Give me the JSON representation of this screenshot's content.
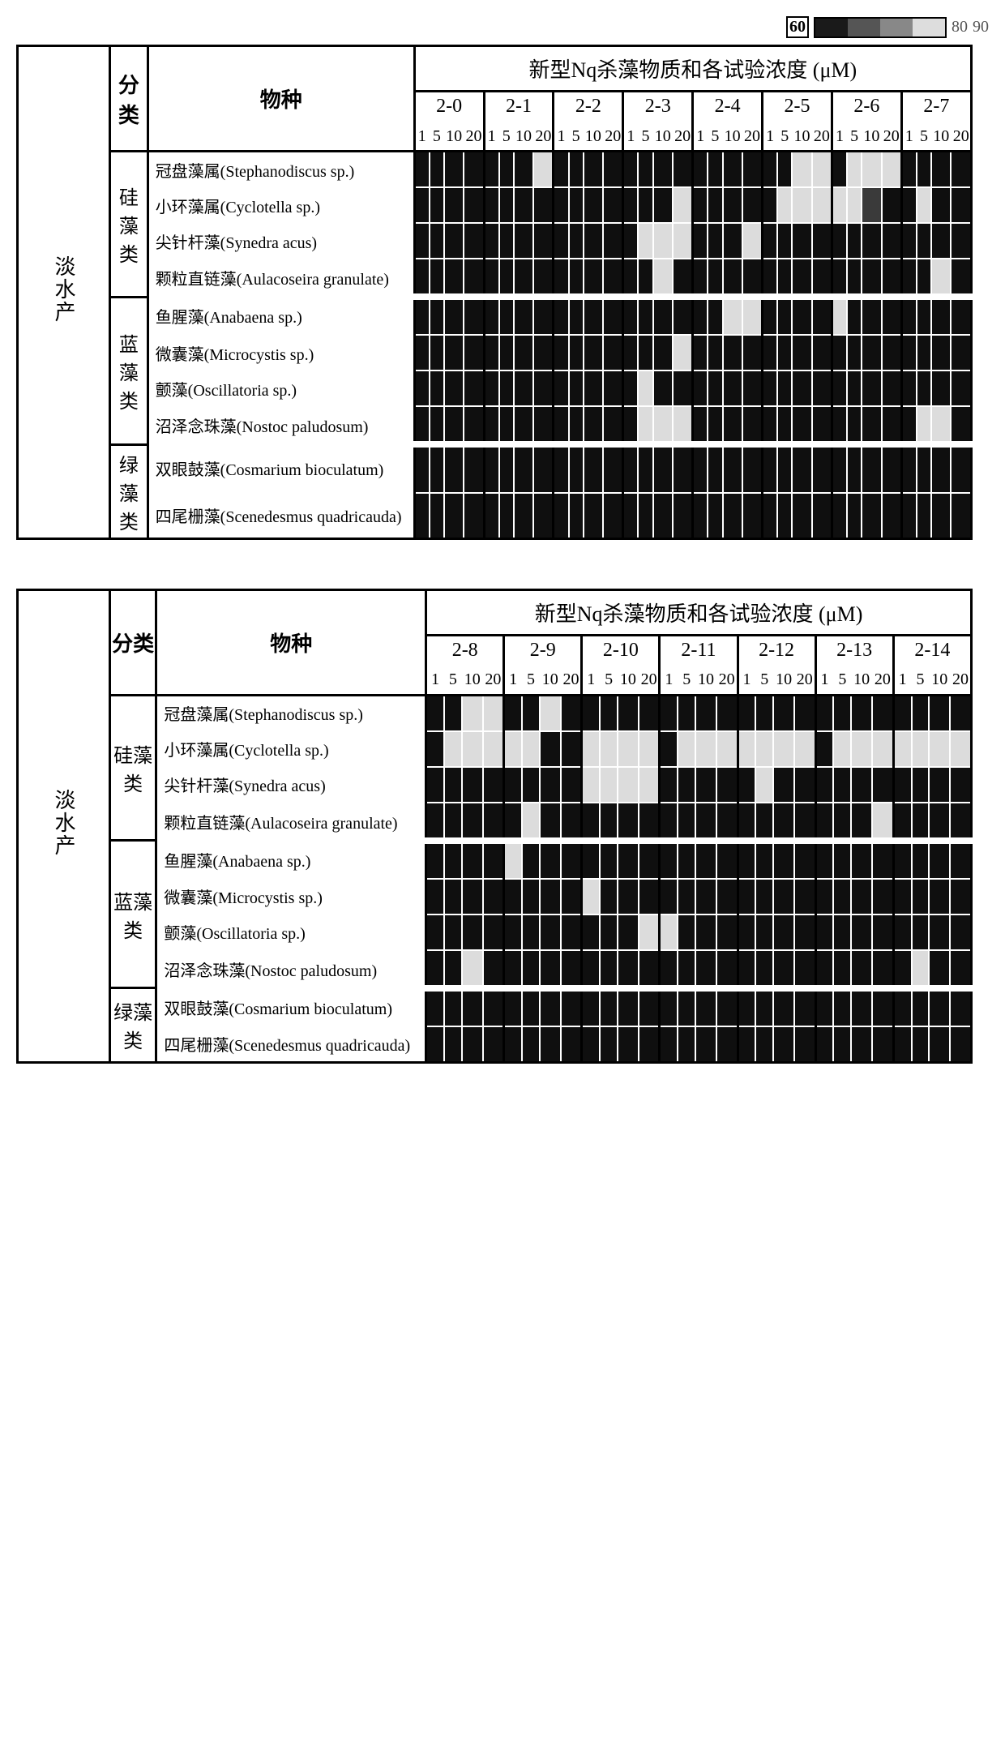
{
  "legend": {
    "labels": [
      "60",
      "80",
      "90"
    ],
    "colors": [
      "#1a1a1a",
      "#555555",
      "#888888",
      "#dddddd"
    ]
  },
  "shade_map": {
    "0": "#0f0f0f",
    "1": "#3a3a3a",
    "2": "#777777",
    "3": "#dcdcdc"
  },
  "panel_title": "新型Nq杀藻物质和各试验浓度 (μM)",
  "env_label": "淡水产",
  "cat_header": "分类",
  "sp_header": "物种",
  "concentrations": [
    "1",
    "5",
    "10",
    "20"
  ],
  "categories": [
    {
      "name": "硅藻类",
      "rows": 4
    },
    {
      "name": "蓝藻类",
      "rows": 4
    },
    {
      "name": "绿藻类",
      "rows": 2
    }
  ],
  "species": [
    "冠盘藻属(Stephanodiscus sp.)",
    "小环藻属(Cyclotella sp.)",
    "尖针杆藻(Synedra acus)",
    "颗粒直链藻(Aulacoseira granulate)",
    "鱼腥藻(Anabaena sp.)",
    "微囊藻(Microcystis sp.)",
    "颤藻(Oscillatoria sp.)",
    "沼泽念珠藻(Nostoc paludosum)",
    "双眼鼓藻(Cosmarium bioculatum)",
    "四尾栅藻(Scenedesmus quadricauda)"
  ],
  "panels": [
    {
      "compounds": [
        "2-0",
        "2-1",
        "2-2",
        "2-3",
        "2-4",
        "2-5",
        "2-6",
        "2-7"
      ],
      "data": [
        [
          [
            0,
            0,
            0,
            0
          ],
          [
            0,
            0,
            0,
            3
          ],
          [
            0,
            0,
            0,
            0
          ],
          [
            0,
            0,
            0,
            0
          ],
          [
            0,
            0,
            0,
            0
          ],
          [
            0,
            0,
            3,
            3
          ],
          [
            0,
            3,
            3,
            3
          ],
          [
            0,
            0,
            0,
            0
          ]
        ],
        [
          [
            0,
            0,
            0,
            0
          ],
          [
            0,
            0,
            0,
            0
          ],
          [
            0,
            0,
            0,
            0
          ],
          [
            0,
            0,
            0,
            3
          ],
          [
            0,
            0,
            0,
            0
          ],
          [
            0,
            3,
            3,
            3
          ],
          [
            3,
            3,
            1,
            0
          ],
          [
            0,
            3,
            0,
            0
          ]
        ],
        [
          [
            0,
            0,
            0,
            0
          ],
          [
            0,
            0,
            0,
            0
          ],
          [
            0,
            0,
            0,
            0
          ],
          [
            0,
            3,
            3,
            3
          ],
          [
            0,
            0,
            0,
            3
          ],
          [
            0,
            0,
            0,
            0
          ],
          [
            0,
            0,
            0,
            0
          ],
          [
            0,
            0,
            0,
            0
          ]
        ],
        [
          [
            0,
            0,
            0,
            0
          ],
          [
            0,
            0,
            0,
            0
          ],
          [
            0,
            0,
            0,
            0
          ],
          [
            0,
            0,
            3,
            0
          ],
          [
            0,
            0,
            0,
            0
          ],
          [
            0,
            0,
            0,
            0
          ],
          [
            0,
            0,
            0,
            0
          ],
          [
            0,
            0,
            3,
            0
          ]
        ],
        [
          [
            0,
            0,
            0,
            0
          ],
          [
            0,
            0,
            0,
            0
          ],
          [
            0,
            0,
            0,
            0
          ],
          [
            0,
            0,
            0,
            0
          ],
          [
            0,
            0,
            3,
            3
          ],
          [
            0,
            0,
            0,
            0
          ],
          [
            3,
            0,
            0,
            0
          ],
          [
            0,
            0,
            0,
            0
          ]
        ],
        [
          [
            0,
            0,
            0,
            0
          ],
          [
            0,
            0,
            0,
            0
          ],
          [
            0,
            0,
            0,
            0
          ],
          [
            0,
            0,
            0,
            3
          ],
          [
            0,
            0,
            0,
            0
          ],
          [
            0,
            0,
            0,
            0
          ],
          [
            0,
            0,
            0,
            0
          ],
          [
            0,
            0,
            0,
            0
          ]
        ],
        [
          [
            0,
            0,
            0,
            0
          ],
          [
            0,
            0,
            0,
            0
          ],
          [
            0,
            0,
            0,
            0
          ],
          [
            0,
            3,
            0,
            0
          ],
          [
            0,
            0,
            0,
            0
          ],
          [
            0,
            0,
            0,
            0
          ],
          [
            0,
            0,
            0,
            0
          ],
          [
            0,
            0,
            0,
            0
          ]
        ],
        [
          [
            0,
            0,
            0,
            0
          ],
          [
            0,
            0,
            0,
            0
          ],
          [
            0,
            0,
            0,
            0
          ],
          [
            0,
            3,
            3,
            3
          ],
          [
            0,
            0,
            0,
            0
          ],
          [
            0,
            0,
            0,
            0
          ],
          [
            0,
            0,
            0,
            0
          ],
          [
            0,
            3,
            3,
            0
          ]
        ],
        [
          [
            0,
            0,
            0,
            0
          ],
          [
            0,
            0,
            0,
            0
          ],
          [
            0,
            0,
            0,
            0
          ],
          [
            0,
            0,
            0,
            0
          ],
          [
            0,
            0,
            0,
            0
          ],
          [
            0,
            0,
            0,
            0
          ],
          [
            0,
            0,
            0,
            0
          ],
          [
            0,
            0,
            0,
            0
          ]
        ],
        [
          [
            0,
            0,
            0,
            0
          ],
          [
            0,
            0,
            0,
            0
          ],
          [
            0,
            0,
            0,
            0
          ],
          [
            0,
            0,
            0,
            0
          ],
          [
            0,
            0,
            0,
            0
          ],
          [
            0,
            0,
            0,
            0
          ],
          [
            0,
            0,
            0,
            0
          ],
          [
            0,
            0,
            0,
            0
          ]
        ]
      ]
    },
    {
      "compounds": [
        "2-8",
        "2-9",
        "2-10",
        "2-11",
        "2-12",
        "2-13",
        "2-14"
      ],
      "data": [
        [
          [
            0,
            0,
            3,
            3
          ],
          [
            0,
            0,
            3,
            0
          ],
          [
            0,
            0,
            0,
            0
          ],
          [
            0,
            0,
            0,
            0
          ],
          [
            0,
            0,
            0,
            0
          ],
          [
            0,
            0,
            0,
            0
          ],
          [
            0,
            0,
            0,
            0
          ]
        ],
        [
          [
            0,
            3,
            3,
            3
          ],
          [
            3,
            3,
            0,
            0
          ],
          [
            3,
            3,
            3,
            3
          ],
          [
            0,
            3,
            3,
            3
          ],
          [
            3,
            3,
            3,
            3
          ],
          [
            0,
            3,
            3,
            3
          ],
          [
            3,
            3,
            3,
            3
          ]
        ],
        [
          [
            0,
            0,
            0,
            0
          ],
          [
            0,
            0,
            0,
            0
          ],
          [
            3,
            3,
            3,
            3
          ],
          [
            0,
            0,
            0,
            0
          ],
          [
            0,
            3,
            0,
            0
          ],
          [
            0,
            0,
            0,
            0
          ],
          [
            0,
            0,
            0,
            0
          ]
        ],
        [
          [
            0,
            0,
            0,
            0
          ],
          [
            0,
            3,
            0,
            0
          ],
          [
            0,
            0,
            0,
            0
          ],
          [
            0,
            0,
            0,
            0
          ],
          [
            0,
            0,
            0,
            0
          ],
          [
            0,
            0,
            0,
            3
          ],
          [
            0,
            0,
            0,
            0
          ]
        ],
        [
          [
            0,
            0,
            0,
            0
          ],
          [
            3,
            0,
            0,
            0
          ],
          [
            0,
            0,
            0,
            0
          ],
          [
            0,
            0,
            0,
            0
          ],
          [
            0,
            0,
            0,
            0
          ],
          [
            0,
            0,
            0,
            0
          ],
          [
            0,
            0,
            0,
            0
          ]
        ],
        [
          [
            0,
            0,
            0,
            0
          ],
          [
            0,
            0,
            0,
            0
          ],
          [
            3,
            0,
            0,
            0
          ],
          [
            0,
            0,
            0,
            0
          ],
          [
            0,
            0,
            0,
            0
          ],
          [
            0,
            0,
            0,
            0
          ],
          [
            0,
            0,
            0,
            0
          ]
        ],
        [
          [
            0,
            0,
            0,
            0
          ],
          [
            0,
            0,
            0,
            0
          ],
          [
            0,
            0,
            0,
            3
          ],
          [
            3,
            0,
            0,
            0
          ],
          [
            0,
            0,
            0,
            0
          ],
          [
            0,
            0,
            0,
            0
          ],
          [
            0,
            0,
            0,
            0
          ]
        ],
        [
          [
            0,
            0,
            3,
            0
          ],
          [
            0,
            0,
            0,
            0
          ],
          [
            0,
            0,
            0,
            0
          ],
          [
            0,
            0,
            0,
            0
          ],
          [
            0,
            0,
            0,
            0
          ],
          [
            0,
            0,
            0,
            0
          ],
          [
            0,
            3,
            0,
            0
          ]
        ],
        [
          [
            0,
            0,
            0,
            0
          ],
          [
            0,
            0,
            0,
            0
          ],
          [
            0,
            0,
            0,
            0
          ],
          [
            0,
            0,
            0,
            0
          ],
          [
            0,
            0,
            0,
            0
          ],
          [
            0,
            0,
            0,
            0
          ],
          [
            0,
            0,
            0,
            0
          ]
        ],
        [
          [
            0,
            0,
            0,
            0
          ],
          [
            0,
            0,
            0,
            0
          ],
          [
            0,
            0,
            0,
            0
          ],
          [
            0,
            0,
            0,
            0
          ],
          [
            0,
            0,
            0,
            0
          ],
          [
            0,
            0,
            0,
            0
          ],
          [
            0,
            0,
            0,
            0
          ]
        ]
      ]
    }
  ]
}
